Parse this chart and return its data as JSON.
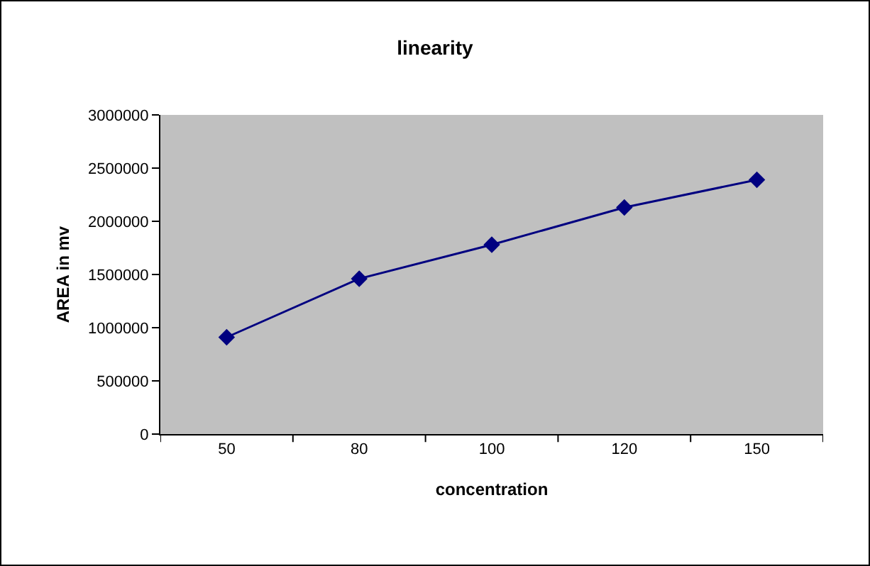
{
  "chart_data": {
    "type": "line",
    "title": "linearity",
    "xlabel": "concentration",
    "ylabel": "AREA in mv",
    "categories": [
      "50",
      "80",
      "100",
      "120",
      "150"
    ],
    "series": [
      {
        "color": "#000080",
        "values": [
          910000,
          1460000,
          1780000,
          2130000,
          2390000
        ]
      }
    ],
    "ylim": [
      0,
      3000000
    ],
    "yticks": [
      0,
      500000,
      1000000,
      1500000,
      2000000,
      2500000,
      3000000
    ],
    "grid": false,
    "marker": "diamond",
    "line_style": "solid"
  }
}
